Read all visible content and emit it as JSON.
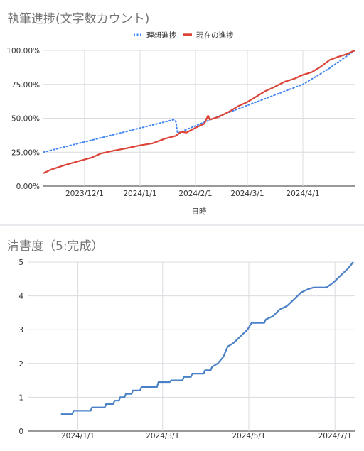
{
  "chart_data": [
    {
      "type": "line",
      "title": "執筆進捗(文字数カウント)",
      "xlabel": "日時",
      "ylabel": "",
      "x_ticks": [
        "2023/12/1",
        "2024/1/1",
        "2024/2/1",
        "2024/3/1",
        "2024/4/1"
      ],
      "y_ticks": [
        "0.00%",
        "25.00%",
        "50.00%",
        "75.00%",
        "100.00%"
      ],
      "ylim": [
        0,
        100
      ],
      "xlim": [
        "2023-11-08",
        "2024-04-30"
      ],
      "grid": true,
      "legend_position": "top",
      "series": [
        {
          "name": "理想進捗",
          "color": "#4285f4",
          "style": "dotted",
          "points": [
            [
              "2023-11-08",
              25.0
            ],
            [
              "2024-01-20",
              49.0
            ],
            [
              "2024-01-21",
              47.5
            ],
            [
              "2024-01-22",
              39.0
            ],
            [
              "2024-02-15",
              52.0
            ],
            [
              "2024-03-10",
              64.0
            ],
            [
              "2024-04-01",
              75.0
            ],
            [
              "2024-04-15",
              86.0
            ],
            [
              "2024-04-30",
              100.0
            ]
          ]
        },
        {
          "name": "現在の進捗",
          "color": "#db4437",
          "style": "solid",
          "points": [
            [
              "2023-11-08",
              9.5
            ],
            [
              "2023-11-12",
              12.0
            ],
            [
              "2023-11-20",
              15.5
            ],
            [
              "2023-11-28",
              18.5
            ],
            [
              "2023-12-05",
              21.0
            ],
            [
              "2023-12-10",
              24.0
            ],
            [
              "2023-12-17",
              26.0
            ],
            [
              "2023-12-25",
              28.0
            ],
            [
              "2024-01-01",
              30.0
            ],
            [
              "2024-01-08",
              31.5
            ],
            [
              "2024-01-15",
              35.0
            ],
            [
              "2024-01-21",
              37.0
            ],
            [
              "2024-01-24",
              40.0
            ],
            [
              "2024-01-27",
              39.5
            ],
            [
              "2024-02-01",
              43.0
            ],
            [
              "2024-02-06",
              46.0
            ],
            [
              "2024-02-08",
              52.0
            ],
            [
              "2024-02-09",
              49.0
            ],
            [
              "2024-02-14",
              51.0
            ],
            [
              "2024-02-20",
              55.0
            ],
            [
              "2024-02-25",
              59.0
            ],
            [
              "2024-03-01",
              62.0
            ],
            [
              "2024-03-06",
              66.0
            ],
            [
              "2024-03-11",
              70.0
            ],
            [
              "2024-03-16",
              73.0
            ],
            [
              "2024-03-22",
              77.0
            ],
            [
              "2024-03-27",
              79.0
            ],
            [
              "2024-04-01",
              82.0
            ],
            [
              "2024-04-06",
              84.0
            ],
            [
              "2024-04-11",
              88.0
            ],
            [
              "2024-04-16",
              93.0
            ],
            [
              "2024-04-20",
              95.0
            ],
            [
              "2024-04-25",
              97.0
            ],
            [
              "2024-04-30",
              100.0
            ]
          ]
        }
      ]
    },
    {
      "type": "line",
      "title": "清書度（5:完成）",
      "xlabel": "",
      "ylabel": "",
      "x_ticks": [
        "2024/1/1",
        "2024/3/1",
        "2024/5/1",
        "2024/7/1"
      ],
      "y_ticks": [
        "0",
        "1",
        "2",
        "3",
        "4",
        "5"
      ],
      "ylim": [
        0,
        5
      ],
      "xlim": [
        "2023-11-27",
        "2024-07-15"
      ],
      "grid": true,
      "legend_position": "none",
      "series": [
        {
          "color": "#4a80c5",
          "style": "solid",
          "points": [
            [
              "2023-12-20",
              0.5
            ],
            [
              "2023-12-28",
              0.5
            ],
            [
              "2023-12-29",
              0.6
            ],
            [
              "2024-01-10",
              0.6
            ],
            [
              "2024-01-11",
              0.7
            ],
            [
              "2024-01-20",
              0.7
            ],
            [
              "2024-01-21",
              0.8
            ],
            [
              "2024-01-26",
              0.8
            ],
            [
              "2024-01-27",
              0.9
            ],
            [
              "2024-01-30",
              0.9
            ],
            [
              "2024-01-31",
              1.0
            ],
            [
              "2024-02-03",
              1.0
            ],
            [
              "2024-02-04",
              1.1
            ],
            [
              "2024-02-08",
              1.1
            ],
            [
              "2024-02-09",
              1.2
            ],
            [
              "2024-02-14",
              1.2
            ],
            [
              "2024-02-15",
              1.3
            ],
            [
              "2024-02-26",
              1.3
            ],
            [
              "2024-02-27",
              1.45
            ],
            [
              "2024-03-06",
              1.45
            ],
            [
              "2024-03-07",
              1.5
            ],
            [
              "2024-03-15",
              1.5
            ],
            [
              "2024-03-16",
              1.6
            ],
            [
              "2024-03-21",
              1.6
            ],
            [
              "2024-03-22",
              1.7
            ],
            [
              "2024-03-30",
              1.7
            ],
            [
              "2024-03-31",
              1.8
            ],
            [
              "2024-04-04",
              1.8
            ],
            [
              "2024-04-05",
              1.9
            ],
            [
              "2024-04-09",
              2.0
            ],
            [
              "2024-04-13",
              2.2
            ],
            [
              "2024-04-16",
              2.5
            ],
            [
              "2024-04-20",
              2.6
            ],
            [
              "2024-04-25",
              2.8
            ],
            [
              "2024-04-30",
              3.0
            ],
            [
              "2024-05-03",
              3.2
            ],
            [
              "2024-05-12",
              3.2
            ],
            [
              "2024-05-13",
              3.3
            ],
            [
              "2024-05-18",
              3.4
            ],
            [
              "2024-05-23",
              3.6
            ],
            [
              "2024-05-28",
              3.7
            ],
            [
              "2024-06-02",
              3.9
            ],
            [
              "2024-06-07",
              4.1
            ],
            [
              "2024-06-12",
              4.2
            ],
            [
              "2024-06-16",
              4.25
            ],
            [
              "2024-06-25",
              4.25
            ],
            [
              "2024-06-30",
              4.4
            ],
            [
              "2024-07-05",
              4.6
            ],
            [
              "2024-07-10",
              4.8
            ],
            [
              "2024-07-14",
              5.0
            ]
          ]
        }
      ]
    }
  ]
}
